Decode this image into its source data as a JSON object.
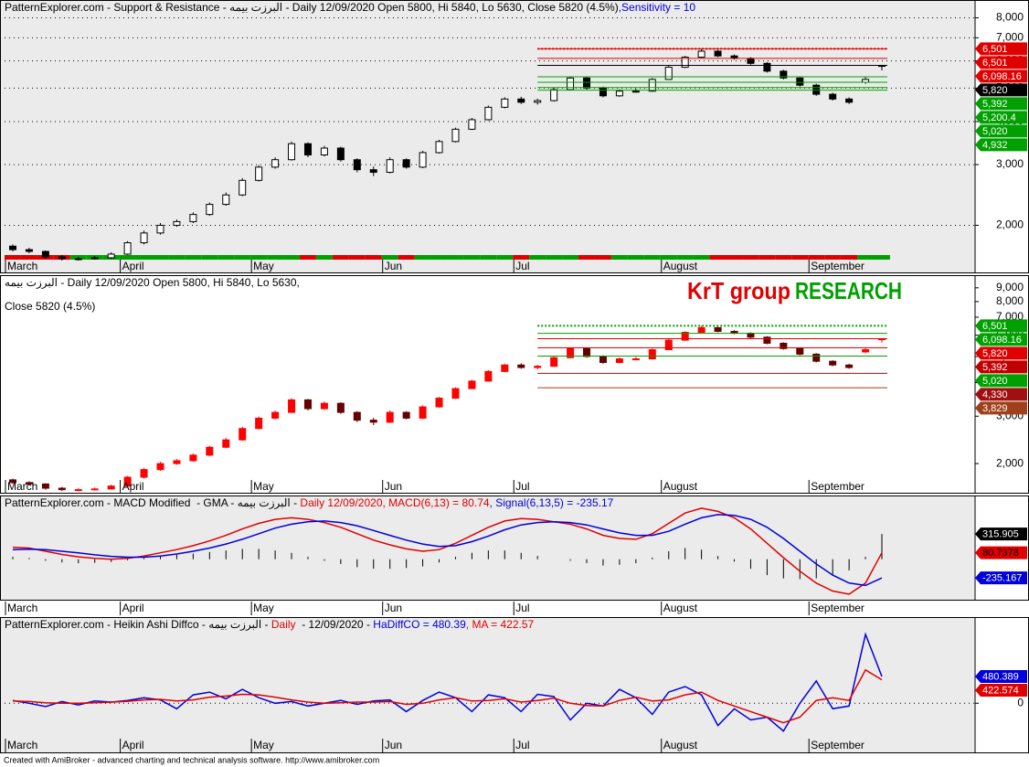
{
  "chart_data": [
    {
      "type": "candlestick",
      "title": [
        "PatternExplorer.com - Support & Resistance - البرزت بيمه - Daily 12/09/2020 Open 5800, Hi 5840, Lo 5630, Close 5820 (4.5%)",
        ",Sensitivity = 10"
      ],
      "title_colors": [
        "#000000",
        "#0000dd"
      ],
      "categories": [
        "March",
        null,
        null,
        null,
        null,
        null,
        null,
        "April",
        null,
        null,
        null,
        null,
        null,
        null,
        null,
        "May",
        null,
        null,
        null,
        null,
        null,
        null,
        null,
        "Jun",
        null,
        null,
        null,
        null,
        null,
        null,
        null,
        "Jul",
        null,
        null,
        null,
        null,
        null,
        null,
        null,
        null,
        "August",
        null,
        null,
        null,
        null,
        null,
        null,
        null,
        null,
        "September",
        null,
        null,
        null,
        null
      ],
      "open": [
        1740,
        1700,
        1680,
        1620,
        1600,
        1600,
        1610,
        1650,
        1780,
        1900,
        2000,
        2050,
        2150,
        2300,
        2450,
        2700,
        2950,
        3100,
        3450,
        3200,
        3350,
        3100,
        2900,
        2850,
        3100,
        2950,
        3250,
        3500,
        3800,
        4050,
        4400,
        4650,
        4550,
        4600,
        4950,
        5350,
        5000,
        4750,
        4900,
        4900,
        5300,
        5750,
        6150,
        6400,
        6200,
        6100,
        5900,
        5600,
        5350,
        5100,
        4800,
        4650,
        5200,
        5800
      ],
      "high": [
        1760,
        1720,
        1690,
        1640,
        1620,
        1630,
        1670,
        1800,
        1930,
        2030,
        2080,
        2180,
        2330,
        2490,
        2740,
        2990,
        3150,
        3500,
        3480,
        3400,
        3380,
        3130,
        2960,
        3150,
        3130,
        3290,
        3540,
        3840,
        4100,
        4450,
        4700,
        4720,
        4660,
        5000,
        5400,
        5380,
        5050,
        4960,
        4980,
        5350,
        5800,
        6200,
        6501,
        6450,
        6260,
        6150,
        5950,
        5650,
        5400,
        5150,
        4850,
        4700,
        5392,
        5840
      ],
      "low": [
        1680,
        1660,
        1600,
        1580,
        1580,
        1590,
        1600,
        1640,
        1760,
        1880,
        1980,
        2030,
        2130,
        2280,
        2430,
        2680,
        2920,
        3080,
        3150,
        3170,
        3060,
        2850,
        2780,
        2830,
        2920,
        2930,
        3230,
        3480,
        3780,
        4030,
        4370,
        4500,
        4480,
        4570,
        4920,
        4950,
        4700,
        4720,
        4850,
        4880,
        5280,
        5720,
        6100,
        6150,
        6050,
        5850,
        5550,
        5300,
        5050,
        4750,
        4600,
        4500,
        5150,
        5630
      ],
      "close": [
        1700,
        1680,
        1620,
        1600,
        1600,
        1610,
        1650,
        1780,
        1900,
        2000,
        2050,
        2150,
        2300,
        2450,
        2700,
        2950,
        3100,
        3450,
        3200,
        3350,
        3100,
        2900,
        2850,
        3100,
        2950,
        3250,
        3500,
        3800,
        4050,
        4400,
        4650,
        4550,
        4600,
        4950,
        5350,
        5000,
        4750,
        4900,
        4900,
        5300,
        5750,
        6150,
        6400,
        6200,
        6100,
        5900,
        5600,
        5350,
        5100,
        4800,
        4650,
        4550,
        5300,
        5820
      ],
      "up_color": "#ffffff",
      "down_color": "#000000",
      "bar_up_color": "#00a000",
      "bar_down_color": "#e00000",
      "log_scale": true,
      "ylim": [
        1600,
        8900
      ],
      "grid": true,
      "yticks": [
        {
          "value": 2000,
          "label": "2,000"
        },
        {
          "value": 3000,
          "label": "3,000"
        },
        {
          "value": 4000,
          "label": "4,000"
        },
        {
          "value": 5000,
          "label": "5,000"
        },
        {
          "value": 6000,
          "label": "6,000"
        },
        {
          "value": 7000,
          "label": "7,000"
        },
        {
          "value": 8000,
          "label": "8,000"
        }
      ],
      "levels": {
        "values": [
          6501,
          6501,
          6098.16,
          5820,
          5392,
          5200.4,
          5020,
          4932
        ],
        "value_labels": [
          "6,501",
          "6,501",
          "6,098.16",
          "5,820",
          "5,392",
          "5,200.4",
          "5,020",
          "4,932"
        ],
        "colors": [
          "#e00000",
          "#e00000",
          "#e00000",
          "#000000",
          "#00a000",
          "#00a000",
          "#00a000",
          "#00a000"
        ]
      }
    },
    {
      "type": "candlestick",
      "title": [
        "البرزت بيمه - Daily 12/09/2020 Open 5800, Hi 5840, Lo 5630,"
      ],
      "title_colors": [
        "#000000"
      ],
      "subtitle": "Close 5820 (4.5%)",
      "watermark": [
        "KrT group",
        "RESEARCH"
      ],
      "watermark_colors": [
        "#e00000",
        "#00a000"
      ],
      "up_color": "#ff0000",
      "down_color": "#660000",
      "log_scale": true,
      "ylim": [
        1780,
        9950
      ],
      "grid": false,
      "yticks": [
        {
          "value": 2000,
          "label": "2,000"
        },
        {
          "value": 3000,
          "label": "3,000"
        },
        {
          "value": 4000,
          "label": "4,000"
        },
        {
          "value": 5000,
          "label": "5,000"
        },
        {
          "value": 6000,
          "label": "6,000"
        },
        {
          "value": 7000,
          "label": "7,000"
        },
        {
          "value": 8000,
          "label": "8,000"
        },
        {
          "value": 9000,
          "label": "9,000"
        }
      ],
      "levels": {
        "values": [
          6501,
          6098.16,
          5820,
          5392,
          5020,
          4330,
          3829
        ],
        "value_labels": [
          "6,501",
          "6,098.16",
          "5,820",
          "5,392",
          "5,020",
          "4,330",
          "3,829"
        ],
        "colors": [
          "#00a000",
          "#00a000",
          "#e00000",
          "#c00000",
          "#00a000",
          "#a01010",
          "#a0401a"
        ]
      }
    },
    {
      "type": "macd",
      "title": [
        "PatternExplorer.com - MACD Modified  - GMA - البرزت بيمه - ",
        "Daily 12/09/2020, MACD(6,13) = 80.74",
        ", Signal(6,13,5) = -235.17"
      ],
      "title_colors": [
        "#000000",
        "#e00000",
        "#0000dd"
      ],
      "ylim": [
        -520,
        800
      ],
      "histogram": {
        "color": "#000000",
        "values": [
          30,
          15,
          -20,
          -40,
          -50,
          -45,
          -35,
          -15,
          15,
          40,
          55,
          70,
          90,
          110,
          130,
          130,
          110,
          80,
          30,
          -20,
          -60,
          -100,
          -120,
          -120,
          -110,
          -90,
          -40,
          30,
          80,
          110,
          110,
          80,
          40,
          0,
          -20,
          -50,
          -80,
          -70,
          -50,
          20,
          100,
          140,
          120,
          40,
          -30,
          -120,
          -200,
          -240,
          -250,
          -240,
          -200,
          -140,
          30,
          315.905
        ]
      },
      "series": [
        {
          "color": "#e00000",
          "values": [
            150,
            140,
            100,
            60,
            30,
            10,
            0,
            10,
            40,
            80,
            120,
            170,
            230,
            300,
            380,
            450,
            500,
            520,
            500,
            460,
            400,
            320,
            240,
            180,
            130,
            100,
            120,
            200,
            300,
            400,
            480,
            510,
            500,
            470,
            440,
            380,
            300,
            260,
            250,
            320,
            450,
            580,
            640,
            600,
            520,
            380,
            200,
            20,
            -150,
            -300,
            -400,
            -440,
            -300,
            80.7378
          ]
        },
        {
          "color": "#0000dd",
          "values": [
            120,
            125,
            120,
            100,
            80,
            55,
            35,
            25,
            25,
            40,
            65,
            100,
            140,
            190,
            250,
            320,
            390,
            440,
            470,
            480,
            460,
            420,
            360,
            300,
            240,
            190,
            160,
            170,
            220,
            290,
            370,
            430,
            460,
            470,
            460,
            430,
            380,
            330,
            300,
            300,
            350,
            440,
            520,
            560,
            550,
            500,
            400,
            260,
            100,
            -60,
            -200,
            -300,
            -330,
            -235.167
          ]
        }
      ]
    },
    {
      "type": "line",
      "title": [
        "PatternExplorer.com - Heikin Ashi Diffco - البرزت بيمه - ",
        "Daily",
        "  - 12/09/2020 - ",
        "HaDiffCO = 480.39",
        ", MA = 422.57"
      ],
      "title_colors": [
        "#000000",
        "#e00000",
        "#000000",
        "#0000dd",
        "#e00000"
      ],
      "ylim": [
        -900,
        1550
      ],
      "yticks": [
        0
      ],
      "grid": true,
      "series": [
        {
          "color": "#0000dd",
          "values": [
            50,
            0,
            -60,
            30,
            -30,
            40,
            20,
            50,
            100,
            60,
            -100,
            150,
            200,
            80,
            250,
            100,
            0,
            30,
            -50,
            0,
            50,
            -20,
            40,
            60,
            -150,
            50,
            200,
            100,
            -150,
            150,
            100,
            -150,
            160,
            120,
            -300,
            0,
            -50,
            250,
            100,
            -200,
            200,
            300,
            150,
            -400,
            -100,
            -300,
            -250,
            -500,
            0,
            400,
            -100,
            -50,
            1240,
            480.389
          ]
        },
        {
          "color": "#e00000",
          "values": [
            40,
            30,
            10,
            0,
            0,
            10,
            20,
            35,
            60,
            70,
            40,
            60,
            110,
            130,
            160,
            150,
            110,
            60,
            20,
            0,
            10,
            20,
            20,
            30,
            -20,
            0,
            60,
            100,
            40,
            50,
            80,
            20,
            50,
            90,
            0,
            -40,
            -50,
            50,
            110,
            40,
            60,
            150,
            200,
            50,
            -50,
            -150,
            -250,
            -350,
            -250,
            50,
            100,
            50,
            600,
            422.574
          ]
        }
      ]
    }
  ],
  "footer": "Created with AmiBroker - advanced charting and technical analysis software. http://www.amibroker.com"
}
